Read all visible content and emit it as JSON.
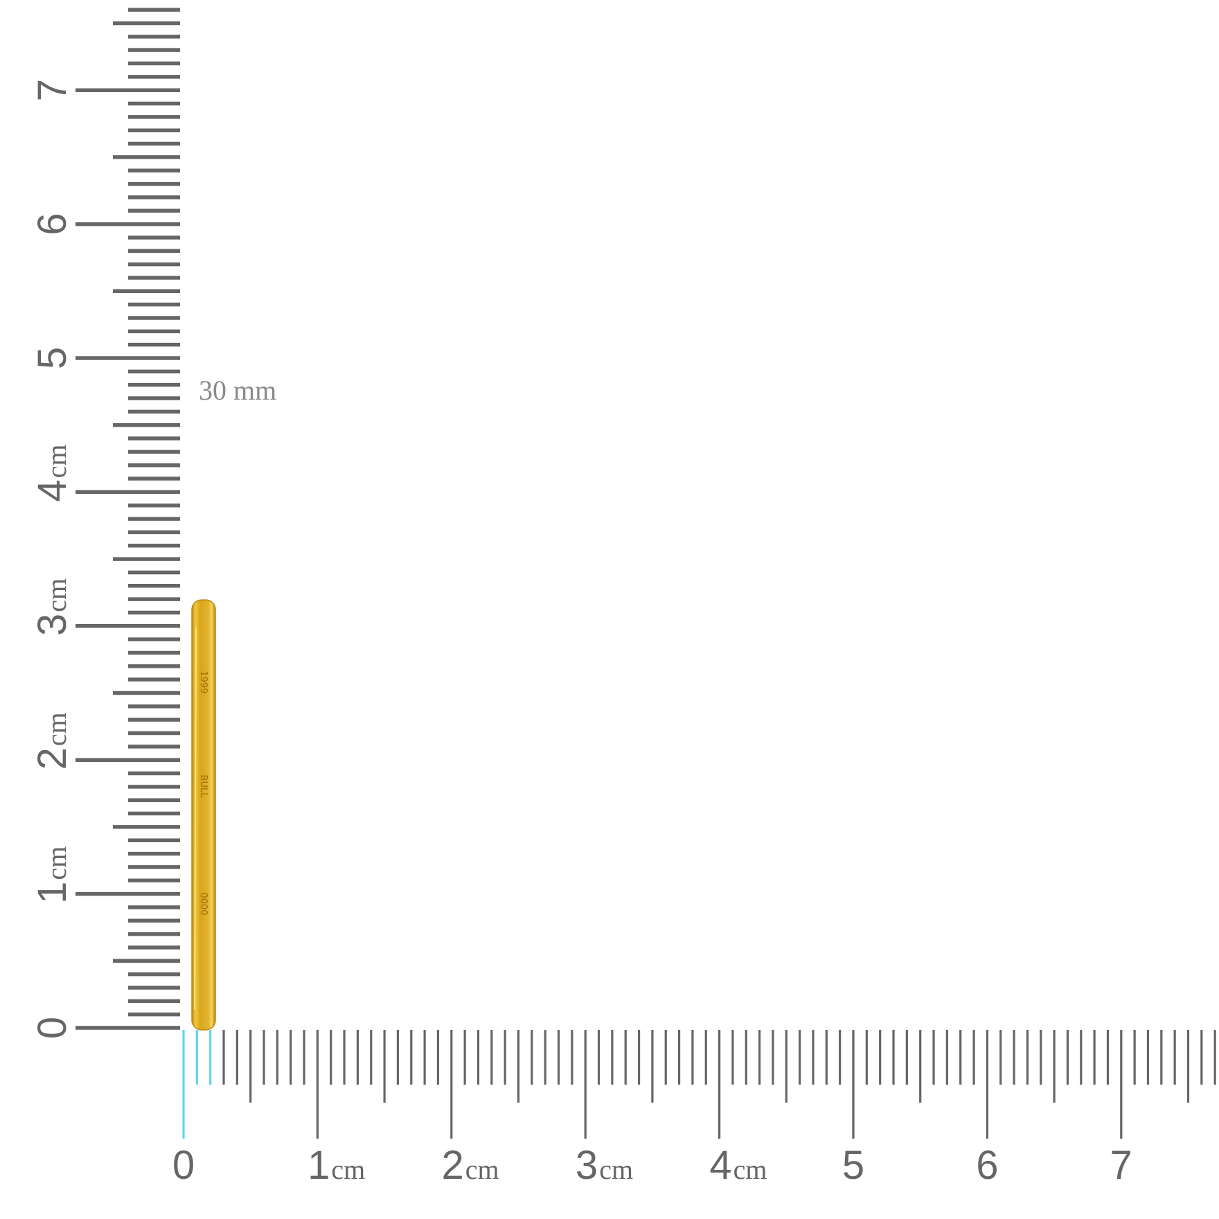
{
  "measurement_label": "30 mm",
  "ruler": {
    "unit_label": "cm",
    "horizontal_labels": [
      {
        "value": "0",
        "unit": ""
      },
      {
        "value": "1",
        "unit": "cm"
      },
      {
        "value": "2",
        "unit": "cm"
      },
      {
        "value": "3",
        "unit": "cm"
      },
      {
        "value": "4",
        "unit": "cm"
      },
      {
        "value": "5",
        "unit": ""
      },
      {
        "value": "6",
        "unit": ""
      },
      {
        "value": "7",
        "unit": ""
      }
    ],
    "vertical_labels": [
      {
        "value": "0",
        "unit": ""
      },
      {
        "value": "1",
        "unit": "cm"
      },
      {
        "value": "2",
        "unit": "cm"
      },
      {
        "value": "3",
        "unit": "cm"
      },
      {
        "value": "4",
        "unit": "cm"
      },
      {
        "value": "5",
        "unit": ""
      },
      {
        "value": "6",
        "unit": ""
      },
      {
        "value": "7",
        "unit": ""
      }
    ],
    "highlighted_mm": 3,
    "object_height_mm": 32,
    "object_thickness_mm": 2,
    "colors": {
      "tick": "#666666",
      "highlight": "#5ad8f0",
      "gold": "#d9a61c",
      "gold_dark": "#b98a10"
    }
  },
  "coin_edge_marks": [
    "1999",
    "BULL",
    "0000"
  ]
}
